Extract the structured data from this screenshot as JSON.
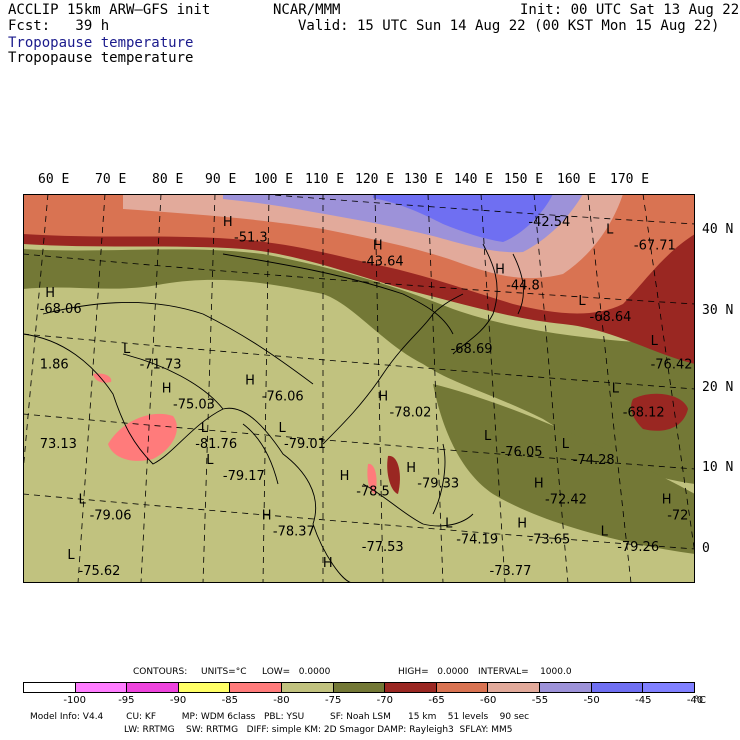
{
  "header": {
    "model": "ACCLIP 15km ARW–GFS init",
    "center": "NCAR/MMM",
    "init": "Init: 00 UTC Sat 13 Aug 22",
    "fcst": "Fcst:   39 h",
    "valid": "Valid: 15 UTC Sun 14 Aug 22 (00 KST Mon 15 Aug 22)",
    "field_label_1": "Tropopause temperature",
    "field_label_2": "Tropopause temperature"
  },
  "axes": {
    "lon_labels": [
      "60 E",
      "70 E",
      "80 E",
      "90 E",
      "100 E",
      "110 E",
      "120 E",
      "130 E",
      "140 E",
      "150 E",
      "160 E",
      "170 E"
    ],
    "lat_labels": [
      "40 N",
      "30 N",
      "20 N",
      "10 N",
      "0"
    ]
  },
  "map_labels": [
    {
      "text": "H",
      "lon": 93,
      "lat": 41
    },
    {
      "text": "-51.3",
      "lon": 95,
      "lat": 39
    },
    {
      "text": "H",
      "lon": 120,
      "lat": 38
    },
    {
      "text": "-43.64",
      "lon": 118,
      "lat": 36
    },
    {
      "text": "-42.54",
      "lon": 148,
      "lat": 41
    },
    {
      "text": "H",
      "lon": 142,
      "lat": 35
    },
    {
      "text": "-44.8",
      "lon": 144,
      "lat": 33
    },
    {
      "text": "L",
      "lon": 162,
      "lat": 40
    },
    {
      "text": "-67.71",
      "lon": 167,
      "lat": 38
    },
    {
      "text": "L",
      "lon": 157,
      "lat": 31
    },
    {
      "text": "-68.64",
      "lon": 159,
      "lat": 29
    },
    {
      "text": "H",
      "lon": 61,
      "lat": 32
    },
    {
      "text": "-68.06",
      "lon": 60,
      "lat": 30
    },
    {
      "text": "1.86",
      "lon": 60,
      "lat": 23
    },
    {
      "text": "L",
      "lon": 75,
      "lat": 25
    },
    {
      "text": "-71.73",
      "lon": 78,
      "lat": 23
    },
    {
      "text": "H",
      "lon": 82,
      "lat": 20
    },
    {
      "text": "-75.03",
      "lon": 84,
      "lat": 18
    },
    {
      "text": "H",
      "lon": 97,
      "lat": 21
    },
    {
      "text": "-76.06",
      "lon": 100,
      "lat": 19
    },
    {
      "text": "L",
      "lon": 89,
      "lat": 15
    },
    {
      "text": "-81.76",
      "lon": 88,
      "lat": 13
    },
    {
      "text": "L",
      "lon": 103,
      "lat": 15
    },
    {
      "text": "-79.01",
      "lon": 104,
      "lat": 13
    },
    {
      "text": "H",
      "lon": 121,
      "lat": 19
    },
    {
      "text": "-78.02",
      "lon": 123,
      "lat": 17
    },
    {
      "text": "-68.69",
      "lon": 134,
      "lat": 25
    },
    {
      "text": "L",
      "lon": 170,
      "lat": 26
    },
    {
      "text": "-76.42",
      "lon": 170,
      "lat": 23
    },
    {
      "text": "L",
      "lon": 163,
      "lat": 20
    },
    {
      "text": "-68.12",
      "lon": 165,
      "lat": 17
    },
    {
      "text": "L",
      "lon": 140,
      "lat": 14
    },
    {
      "text": "-76.05",
      "lon": 143,
      "lat": 12
    },
    {
      "text": "L",
      "lon": 154,
      "lat": 13
    },
    {
      "text": "-74.28",
      "lon": 156,
      "lat": 11
    },
    {
      "text": "73.13",
      "lon": 60,
      "lat": 13
    },
    {
      "text": "L",
      "lon": 90,
      "lat": 11
    },
    {
      "text": "-79.17",
      "lon": 93,
      "lat": 9
    },
    {
      "text": "H",
      "lon": 114,
      "lat": 9
    },
    {
      "text": "-78.5",
      "lon": 117,
      "lat": 7
    },
    {
      "text": "H",
      "lon": 126,
      "lat": 10
    },
    {
      "text": "-79.33",
      "lon": 128,
      "lat": 8
    },
    {
      "text": "H",
      "lon": 149,
      "lat": 8
    },
    {
      "text": "-72.42",
      "lon": 151,
      "lat": 6
    },
    {
      "text": "H",
      "lon": 172,
      "lat": 6
    },
    {
      "text": "-72",
      "lon": 173,
      "lat": 4
    },
    {
      "text": "L",
      "lon": 67,
      "lat": 6
    },
    {
      "text": "-79.06",
      "lon": 69,
      "lat": 4
    },
    {
      "text": "H",
      "lon": 100,
      "lat": 4
    },
    {
      "text": "-78.37",
      "lon": 102,
      "lat": 2
    },
    {
      "text": "L",
      "lon": 133,
      "lat": 3
    },
    {
      "text": "-74.19",
      "lon": 135,
      "lat": 1
    },
    {
      "text": "H",
      "lon": 146,
      "lat": 3
    },
    {
      "text": "-73.65",
      "lon": 148,
      "lat": 1
    },
    {
      "text": "L",
      "lon": 161,
      "lat": 2
    },
    {
      "text": "-79.26",
      "lon": 164,
      "lat": 0
    },
    {
      "text": "-77.53",
      "lon": 118,
      "lat": 0
    },
    {
      "text": "H",
      "lon": 111,
      "lat": -2
    },
    {
      "text": "L",
      "lon": 65,
      "lat": -1
    },
    {
      "text": "-75.62",
      "lon": 67,
      "lat": -3
    },
    {
      "text": "-73.77",
      "lon": 141,
      "lat": -3
    }
  ],
  "contours_line": {
    "contours": "CONTOURS:",
    "units": "UNITS=°C",
    "low": "LOW=   0.0000",
    "high": "HIGH=   0.0000",
    "interval": "INTERVAL=    1000.0"
  },
  "colorbar": {
    "colors": [
      "#ffffff",
      "#ff7dff",
      "#ee44dd",
      "#ffff66",
      "#ff7b7b",
      "#c1c27f",
      "#737836",
      "#9a2722",
      "#d97352",
      "#e2aa9b",
      "#9d92d9",
      "#6f6ff2",
      "#8080ff"
    ],
    "ticks": [
      "-100",
      "-95",
      "-90",
      "-85",
      "-80",
      "-75",
      "-70",
      "-65",
      "-60",
      "-55",
      "-50",
      "-45",
      "-40"
    ],
    "unit": "°C"
  },
  "footer": {
    "line1": "Model Info: V4.4        CU: KF         MP: WDM 6class   PBL: YSU         SF: Noah LSM      15 km    51 levels    90 sec",
    "line2": "LW: RRTMG    SW: RRTMG   DIFF: simple KM: 2D Smagor DAMP: Rayleigh3  SFLAY: MM5"
  }
}
